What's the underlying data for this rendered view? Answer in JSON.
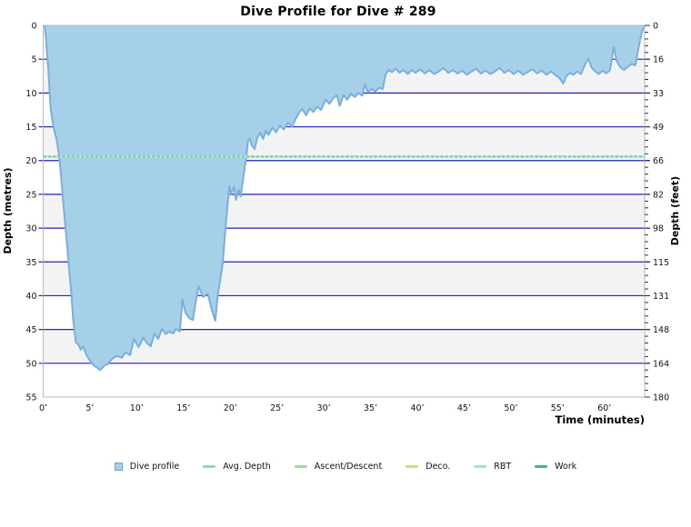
{
  "chart_data": {
    "type": "area",
    "title": "Dive Profile for Dive # 289",
    "xlabel": "Time (minutes)",
    "ylabel_left": "Depth (metres)",
    "ylabel_right": "Depth (feet)",
    "xlim_minutes": [
      0,
      64.3
    ],
    "ylim_metres": [
      0,
      55
    ],
    "grid": "horizontal-only",
    "x_ticks_minutes": [
      0,
      5,
      10,
      15,
      20,
      25,
      30,
      35,
      40,
      45,
      50,
      55,
      60
    ],
    "x_tick_labels": [
      "0’",
      "5’",
      "10’",
      "15’",
      "20’",
      "25’",
      "30’",
      "35’",
      "40’",
      "45’",
      "50’",
      "55’",
      "60’"
    ],
    "y_ticks_metres": [
      0,
      5,
      10,
      15,
      20,
      25,
      30,
      35,
      40,
      45,
      50,
      55
    ],
    "y_tick_labels_metres": [
      "0",
      "5",
      "10",
      "15",
      "20",
      "25",
      "30",
      "35",
      "40",
      "45",
      "50",
      "55"
    ],
    "y_tick_labels_feet": [
      "0",
      "16",
      "33",
      "49",
      "66",
      "82",
      "98",
      "115",
      "131",
      "148",
      "164",
      "180"
    ],
    "right_axis_minor_tick_every_m": 1,
    "avg_depth_m": 19.4,
    "max_depth_m": 51.0,
    "series": [
      {
        "name": "Dive profile",
        "points": [
          [
            0.15,
            0
          ],
          [
            0.3,
            2.0
          ],
          [
            0.45,
            4.8
          ],
          [
            0.55,
            6.5
          ],
          [
            0.65,
            9.0
          ],
          [
            0.8,
            12.3
          ],
          [
            1.0,
            14.2
          ],
          [
            1.2,
            15.6
          ],
          [
            1.45,
            17.0
          ],
          [
            1.7,
            19.3
          ],
          [
            1.9,
            22.0
          ],
          [
            2.1,
            25.5
          ],
          [
            2.35,
            29.5
          ],
          [
            2.6,
            33.0
          ],
          [
            2.8,
            36.5
          ],
          [
            3.0,
            39.5
          ],
          [
            3.2,
            43.5
          ],
          [
            3.5,
            46.9
          ],
          [
            3.8,
            47.3
          ],
          [
            4.0,
            48.0
          ],
          [
            4.3,
            47.5
          ],
          [
            4.6,
            48.7
          ],
          [
            5.0,
            49.6
          ],
          [
            5.4,
            50.3
          ],
          [
            5.8,
            50.7
          ],
          [
            6.1,
            51.0
          ],
          [
            6.5,
            50.4
          ],
          [
            6.9,
            50.1
          ],
          [
            7.4,
            49.3
          ],
          [
            7.9,
            48.9
          ],
          [
            8.4,
            49.2
          ],
          [
            8.8,
            48.4
          ],
          [
            9.3,
            48.8
          ],
          [
            9.7,
            46.4
          ],
          [
            10.2,
            47.6
          ],
          [
            10.7,
            46.2
          ],
          [
            11.1,
            47.0
          ],
          [
            11.5,
            47.5
          ],
          [
            11.9,
            45.6
          ],
          [
            12.3,
            46.4
          ],
          [
            12.7,
            44.9
          ],
          [
            13.1,
            45.7
          ],
          [
            13.4,
            45.3
          ],
          [
            13.9,
            45.6
          ],
          [
            14.2,
            44.9
          ],
          [
            14.6,
            45.3
          ],
          [
            14.9,
            40.6
          ],
          [
            15.2,
            42.5
          ],
          [
            15.6,
            43.3
          ],
          [
            16.0,
            43.6
          ],
          [
            16.3,
            41.0
          ],
          [
            16.6,
            38.6
          ],
          [
            17.1,
            40.2
          ],
          [
            17.4,
            39.9
          ],
          [
            17.6,
            39.7
          ],
          [
            18.0,
            42.0
          ],
          [
            18.4,
            43.7
          ],
          [
            18.7,
            39.5
          ],
          [
            18.9,
            37.9
          ],
          [
            19.2,
            35.2
          ],
          [
            19.5,
            29.8
          ],
          [
            19.9,
            23.8
          ],
          [
            20.1,
            24.9
          ],
          [
            20.4,
            23.9
          ],
          [
            20.6,
            25.8
          ],
          [
            20.9,
            24.3
          ],
          [
            21.1,
            25.3
          ],
          [
            21.4,
            22.5
          ],
          [
            21.7,
            19.6
          ],
          [
            21.9,
            17.1
          ],
          [
            22.1,
            16.8
          ],
          [
            22.3,
            17.7
          ],
          [
            22.6,
            18.3
          ],
          [
            22.9,
            16.6
          ],
          [
            23.2,
            15.9
          ],
          [
            23.5,
            16.8
          ],
          [
            23.8,
            15.6
          ],
          [
            24.1,
            16.2
          ],
          [
            24.5,
            15.1
          ],
          [
            24.9,
            15.8
          ],
          [
            25.3,
            14.8
          ],
          [
            25.7,
            15.4
          ],
          [
            26.2,
            14.4
          ],
          [
            26.6,
            15.0
          ],
          [
            27.0,
            13.8
          ],
          [
            27.4,
            12.8
          ],
          [
            27.7,
            12.4
          ],
          [
            28.1,
            13.3
          ],
          [
            28.5,
            12.3
          ],
          [
            28.9,
            12.8
          ],
          [
            29.3,
            12.0
          ],
          [
            29.7,
            12.5
          ],
          [
            30.2,
            11.0
          ],
          [
            30.6,
            11.6
          ],
          [
            31.0,
            10.8
          ],
          [
            31.4,
            10.3
          ],
          [
            31.7,
            11.9
          ],
          [
            32.1,
            10.3
          ],
          [
            32.5,
            11.0
          ],
          [
            32.9,
            10.1
          ],
          [
            33.3,
            10.6
          ],
          [
            33.7,
            10.0
          ],
          [
            34.1,
            10.4
          ],
          [
            34.4,
            8.7
          ],
          [
            34.7,
            9.9
          ],
          [
            35.1,
            9.4
          ],
          [
            35.5,
            9.8
          ],
          [
            35.9,
            9.2
          ],
          [
            36.3,
            9.4
          ],
          [
            36.6,
            7.3
          ],
          [
            36.9,
            6.6
          ],
          [
            37.3,
            6.9
          ],
          [
            37.7,
            6.4
          ],
          [
            38.1,
            7.0
          ],
          [
            38.5,
            6.6
          ],
          [
            39.0,
            7.2
          ],
          [
            39.4,
            6.6
          ],
          [
            39.8,
            7.0
          ],
          [
            40.3,
            6.5
          ],
          [
            40.8,
            7.1
          ],
          [
            41.3,
            6.6
          ],
          [
            41.8,
            7.2
          ],
          [
            42.3,
            6.8
          ],
          [
            42.8,
            6.3
          ],
          [
            43.3,
            7.0
          ],
          [
            43.8,
            6.6
          ],
          [
            44.3,
            7.1
          ],
          [
            44.8,
            6.7
          ],
          [
            45.3,
            7.3
          ],
          [
            45.8,
            6.8
          ],
          [
            46.3,
            6.4
          ],
          [
            46.8,
            7.1
          ],
          [
            47.3,
            6.7
          ],
          [
            47.8,
            7.2
          ],
          [
            48.3,
            6.8
          ],
          [
            48.8,
            6.3
          ],
          [
            49.3,
            7.0
          ],
          [
            49.8,
            6.6
          ],
          [
            50.3,
            7.2
          ],
          [
            50.8,
            6.7
          ],
          [
            51.3,
            7.3
          ],
          [
            51.8,
            6.9
          ],
          [
            52.3,
            6.5
          ],
          [
            52.8,
            7.1
          ],
          [
            53.3,
            6.7
          ],
          [
            53.8,
            7.3
          ],
          [
            54.3,
            6.8
          ],
          [
            54.8,
            7.4
          ],
          [
            55.2,
            7.8
          ],
          [
            55.6,
            8.6
          ],
          [
            55.9,
            7.6
          ],
          [
            56.3,
            7.0
          ],
          [
            56.7,
            7.3
          ],
          [
            57.1,
            6.8
          ],
          [
            57.5,
            7.2
          ],
          [
            58.0,
            5.6
          ],
          [
            58.3,
            4.9
          ],
          [
            58.6,
            6.2
          ],
          [
            59.0,
            6.8
          ],
          [
            59.4,
            7.2
          ],
          [
            59.8,
            6.7
          ],
          [
            60.2,
            7.1
          ],
          [
            60.6,
            6.6
          ],
          [
            61.0,
            3.2
          ],
          [
            61.3,
            5.2
          ],
          [
            61.7,
            6.2
          ],
          [
            62.1,
            6.6
          ],
          [
            62.5,
            6.1
          ],
          [
            62.9,
            5.7
          ],
          [
            63.3,
            5.9
          ],
          [
            63.7,
            3.0
          ],
          [
            64.0,
            1.0
          ],
          [
            64.3,
            0
          ]
        ]
      }
    ],
    "legend": [
      {
        "label": "Dive profile",
        "swatch": "square",
        "color": "#a6d0e8",
        "border": "#6ba3cf"
      },
      {
        "label": "Avg. Depth",
        "swatch": "line",
        "color": "#8adbb4"
      },
      {
        "label": "Ascent/Descent",
        "swatch": "line",
        "color": "#9cdd9c"
      },
      {
        "label": "Deco.",
        "swatch": "line",
        "color": "#d9da70"
      },
      {
        "label": "RBT",
        "swatch": "line",
        "color": "#a9d9f1"
      },
      {
        "label": "Work",
        "swatch": "line",
        "color": "#35b694"
      }
    ],
    "colors": {
      "profile_fill": "#a6d0e8",
      "profile_stroke": "#79aede",
      "gridline": "#2222bb",
      "band_gray": "#f3f3f3",
      "band_white": "#ffffff",
      "avg_line": "#7cd5a5",
      "avg_line_light": "#c6edda",
      "plot_border": "#b9b9b9",
      "tick_color": "#333333"
    }
  }
}
